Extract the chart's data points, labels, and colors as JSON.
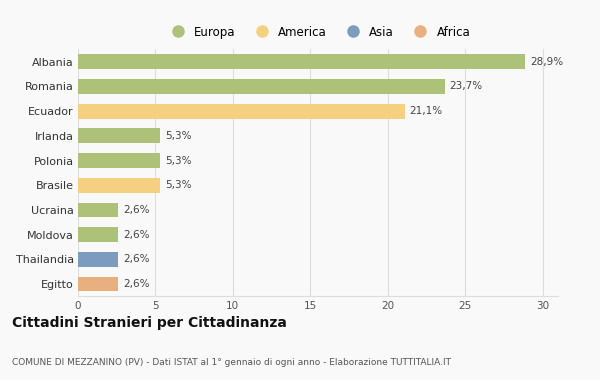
{
  "categories": [
    "Albania",
    "Romania",
    "Ecuador",
    "Irlanda",
    "Polonia",
    "Brasile",
    "Ucraina",
    "Moldova",
    "Thailandia",
    "Egitto"
  ],
  "values": [
    28.9,
    23.7,
    21.1,
    5.3,
    5.3,
    5.3,
    2.6,
    2.6,
    2.6,
    2.6
  ],
  "labels": [
    "28,9%",
    "23,7%",
    "21,1%",
    "5,3%",
    "5,3%",
    "5,3%",
    "2,6%",
    "2,6%",
    "2,6%",
    "2,6%"
  ],
  "colors": [
    "#adc178",
    "#adc178",
    "#f5d080",
    "#adc178",
    "#adc178",
    "#f5d080",
    "#adc178",
    "#adc178",
    "#7b9bbf",
    "#e8b080"
  ],
  "legend_labels": [
    "Europa",
    "America",
    "Asia",
    "Africa"
  ],
  "legend_colors": [
    "#adc178",
    "#f5d080",
    "#7b9bbf",
    "#e8b080"
  ],
  "title": "Cittadini Stranieri per Cittadinanza",
  "subtitle": "COMUNE DI MEZZANINO (PV) - Dati ISTAT al 1° gennaio di ogni anno - Elaborazione TUTTITALIA.IT",
  "xlim": [
    0,
    31
  ],
  "xticks": [
    0,
    5,
    10,
    15,
    20,
    25,
    30
  ],
  "background_color": "#f9f9f9",
  "grid_color": "#dddddd",
  "label_fontsize": 7.5,
  "ytick_fontsize": 8,
  "xtick_fontsize": 7.5,
  "title_fontsize": 10,
  "subtitle_fontsize": 6.5
}
